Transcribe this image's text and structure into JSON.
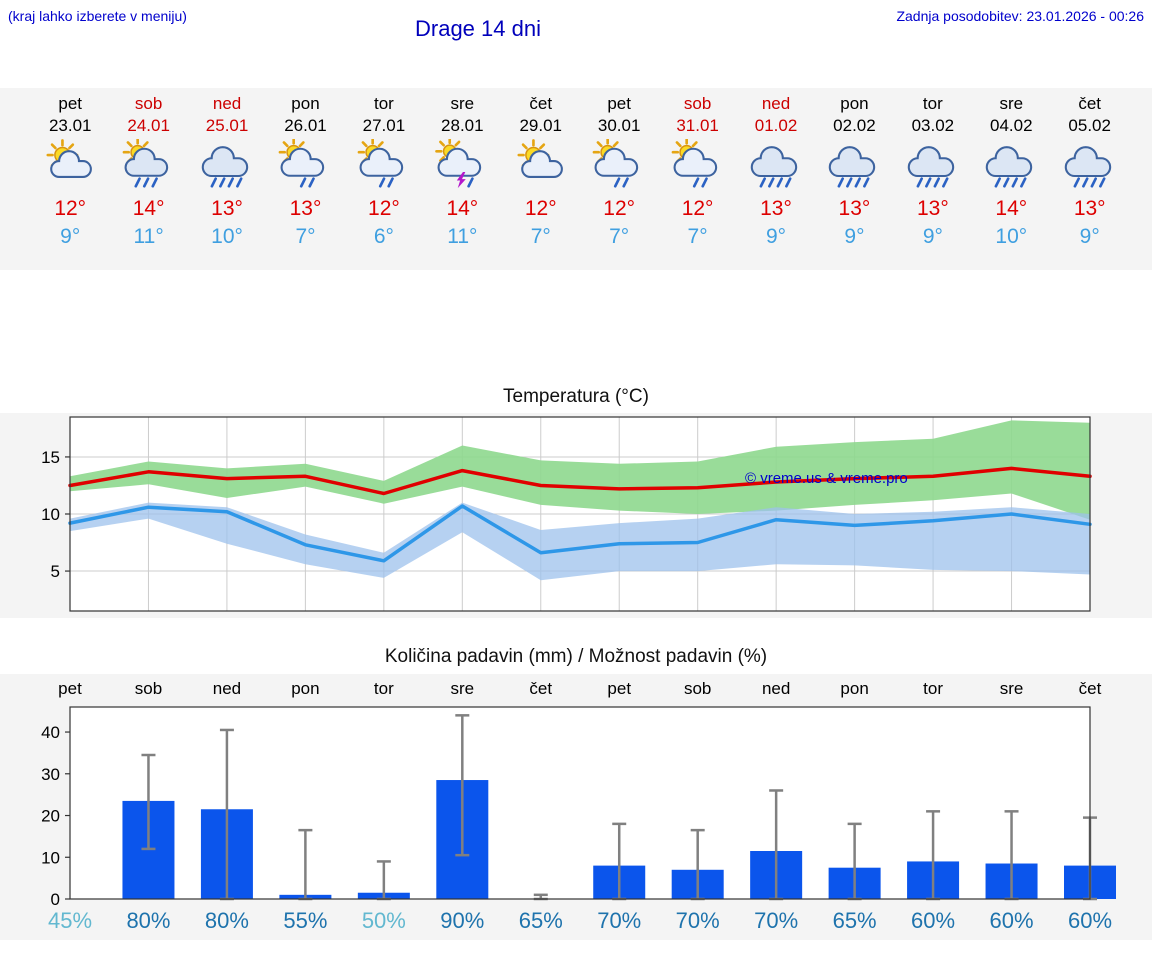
{
  "header": {
    "hint": "(kraj lahko izberete v meniju)",
    "title": "Drage 14 dni",
    "updated": "Zadnja posodobitev: 23.01.2026 - 00:26"
  },
  "days": [
    {
      "name": "pet",
      "date": "23.01",
      "weekend": false,
      "icon": "sun-cloud",
      "high": "12°",
      "low": "9°"
    },
    {
      "name": "sob",
      "date": "24.01",
      "weekend": true,
      "icon": "sun-cloud-rain",
      "high": "14°",
      "low": "11°"
    },
    {
      "name": "ned",
      "date": "25.01",
      "weekend": true,
      "icon": "cloud-rain",
      "high": "13°",
      "low": "10°"
    },
    {
      "name": "pon",
      "date": "26.01",
      "weekend": false,
      "icon": "sun-cloud-showers",
      "high": "13°",
      "low": "7°"
    },
    {
      "name": "tor",
      "date": "27.01",
      "weekend": false,
      "icon": "sun-cloud-showers",
      "high": "12°",
      "low": "6°"
    },
    {
      "name": "sre",
      "date": "28.01",
      "weekend": false,
      "icon": "sun-cloud-storm",
      "high": "14°",
      "low": "11°"
    },
    {
      "name": "čet",
      "date": "29.01",
      "weekend": false,
      "icon": "sun-cloud",
      "high": "12°",
      "low": "7°"
    },
    {
      "name": "pet",
      "date": "30.01",
      "weekend": false,
      "icon": "sun-cloud-showers",
      "high": "12°",
      "low": "7°"
    },
    {
      "name": "sob",
      "date": "31.01",
      "weekend": true,
      "icon": "sun-cloud-showers",
      "high": "12°",
      "low": "7°"
    },
    {
      "name": "ned",
      "date": "01.02",
      "weekend": true,
      "icon": "cloud-rain",
      "high": "13°",
      "low": "9°"
    },
    {
      "name": "pon",
      "date": "02.02",
      "weekend": false,
      "icon": "cloud-rain",
      "high": "13°",
      "low": "9°"
    },
    {
      "name": "tor",
      "date": "03.02",
      "weekend": false,
      "icon": "cloud-rain",
      "high": "13°",
      "low": "9°"
    },
    {
      "name": "sre",
      "date": "04.02",
      "weekend": false,
      "icon": "cloud-rain",
      "high": "14°",
      "low": "10°"
    },
    {
      "name": "čet",
      "date": "05.02",
      "weekend": false,
      "icon": "cloud-rain",
      "high": "13°",
      "low": "9°"
    }
  ],
  "chart_data": [
    {
      "type": "line",
      "title": "Temperatura (°C)",
      "x_categories": [
        "pet 23.01",
        "sob 24.01",
        "ned 25.01",
        "pon 26.01",
        "tor 27.01",
        "sre 28.01",
        "čet 29.01",
        "pet 30.01",
        "sob 31.01",
        "ned 01.02",
        "pon 02.02",
        "tor 03.02",
        "sre 04.02",
        "čet 05.02"
      ],
      "ylim": [
        1.5,
        18.5
      ],
      "yticks": [
        5,
        10,
        15
      ],
      "grid": true,
      "series": [
        {
          "name": "max-temp",
          "color": "#e00000",
          "values": [
            12.5,
            13.7,
            13.1,
            13.3,
            11.8,
            13.8,
            12.5,
            12.2,
            12.3,
            12.8,
            13.1,
            13.3,
            14.0,
            13.3
          ]
        },
        {
          "name": "min-temp",
          "color": "#2e97e8",
          "values": [
            9.2,
            10.6,
            10.2,
            7.3,
            5.9,
            10.7,
            6.6,
            7.4,
            7.5,
            9.5,
            9.0,
            9.4,
            10.0,
            9.1
          ]
        }
      ],
      "bands": [
        {
          "name": "max-range",
          "color": "#8ed88e",
          "opacity": 0.9,
          "upper": [
            13.3,
            14.6,
            14.0,
            14.4,
            12.9,
            16.0,
            14.7,
            14.4,
            14.6,
            15.9,
            16.3,
            16.6,
            18.2,
            18.0
          ],
          "lower": [
            12.0,
            12.6,
            11.4,
            12.4,
            10.9,
            12.4,
            10.8,
            10.3,
            10.0,
            10.3,
            10.8,
            11.2,
            11.8,
            9.5
          ]
        },
        {
          "name": "min-range",
          "color": "#9ec1ec",
          "opacity": 0.75,
          "upper": [
            9.6,
            11.0,
            10.6,
            8.2,
            6.6,
            11.0,
            8.6,
            9.2,
            9.6,
            10.6,
            10.0,
            10.2,
            10.6,
            10.0
          ],
          "lower": [
            8.5,
            9.6,
            7.4,
            5.6,
            4.4,
            8.4,
            4.2,
            5.0,
            5.0,
            5.6,
            5.5,
            5.1,
            5.0,
            4.7
          ]
        }
      ],
      "watermark": "© vreme.us & vreme.pro"
    },
    {
      "type": "bar",
      "title": "Količina padavin (mm) / Možnost padavin (%)",
      "categories": [
        "pet",
        "sob",
        "ned",
        "pon",
        "tor",
        "sre",
        "čet",
        "pet",
        "sob",
        "ned",
        "pon",
        "tor",
        "sre",
        "čet"
      ],
      "values": [
        0,
        23.5,
        21.5,
        1,
        1.5,
        28.5,
        0,
        8,
        7,
        11.5,
        7.5,
        9,
        8.5,
        8
      ],
      "whiskers": [
        null,
        [
          12,
          34.5
        ],
        [
          0,
          40.5
        ],
        [
          0,
          16.5
        ],
        [
          0,
          9
        ],
        [
          10.5,
          44
        ],
        [
          0,
          1
        ],
        [
          0,
          18
        ],
        [
          0,
          16.5
        ],
        [
          0,
          26
        ],
        [
          0,
          18
        ],
        [
          0,
          21
        ],
        [
          0,
          21
        ],
        [
          0,
          19.5
        ]
      ],
      "probabilities": [
        {
          "label": "45%",
          "muted": true
        },
        {
          "label": "80%",
          "muted": false
        },
        {
          "label": "80%",
          "muted": false
        },
        {
          "label": "55%",
          "muted": false
        },
        {
          "label": "50%",
          "muted": true
        },
        {
          "label": "90%",
          "muted": false
        },
        {
          "label": "65%",
          "muted": false
        },
        {
          "label": "70%",
          "muted": false
        },
        {
          "label": "70%",
          "muted": false
        },
        {
          "label": "70%",
          "muted": false
        },
        {
          "label": "65%",
          "muted": false
        },
        {
          "label": "60%",
          "muted": false
        },
        {
          "label": "60%",
          "muted": false
        },
        {
          "label": "60%",
          "muted": false
        }
      ],
      "ylim": [
        0,
        46
      ],
      "yticks": [
        0,
        10,
        20,
        30,
        40
      ],
      "grid": false,
      "bar_color": "#0b55ec",
      "whisker_color": "#808080",
      "prob_color": "#1e73ad",
      "prob_muted_color": "#62b8d0"
    }
  ]
}
